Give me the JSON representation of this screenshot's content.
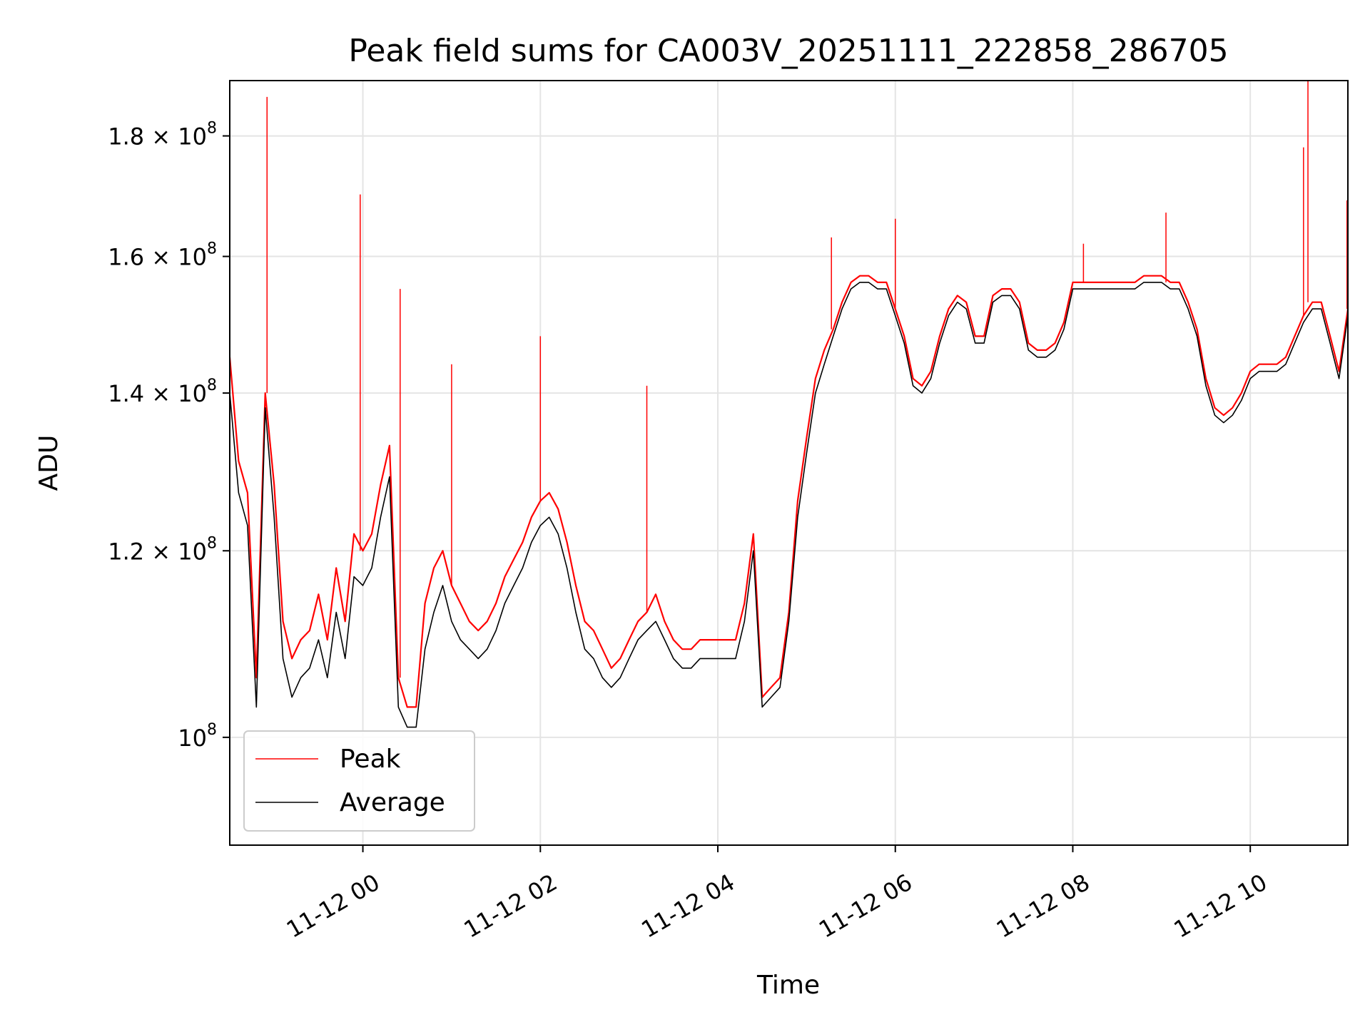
{
  "chart_data": {
    "type": "line",
    "title": "Peak field sums for CA003V_20251111_222858_286705",
    "xlabel": "Time",
    "ylabel": "ADU",
    "yscale": "log",
    "grid": true,
    "legend_position": "lower-left",
    "x_unit": "hours since 11-12 00:00",
    "xlim": [
      -1.5,
      11.1
    ],
    "ylim": [
      90000000,
      190000000
    ],
    "xticks": [
      {
        "value": 0,
        "label": "11-12 00"
      },
      {
        "value": 2,
        "label": "11-12 02"
      },
      {
        "value": 4,
        "label": "11-12 04"
      },
      {
        "value": 6,
        "label": "11-12 06"
      },
      {
        "value": 8,
        "label": "11-12 08"
      },
      {
        "value": 10,
        "label": "11-12 10"
      }
    ],
    "yticks": [
      {
        "value": 100000000,
        "mantissa": "",
        "base": "10",
        "exponent": "8"
      },
      {
        "value": 120000000,
        "mantissa": "1.2",
        "base": "10",
        "exponent": "8"
      },
      {
        "value": 140000000,
        "mantissa": "1.4",
        "base": "10",
        "exponent": "8"
      },
      {
        "value": 160000000,
        "mantissa": "1.6",
        "base": "10",
        "exponent": "8"
      },
      {
        "value": 180000000,
        "mantissa": "1.8",
        "base": "10",
        "exponent": "8"
      }
    ],
    "x": [
      -1.5,
      -1.4,
      -1.3,
      -1.2,
      -1.1,
      -1.0,
      -0.9,
      -0.8,
      -0.7,
      -0.6,
      -0.5,
      -0.4,
      -0.3,
      -0.2,
      -0.1,
      0.0,
      0.1,
      0.2,
      0.3,
      0.4,
      0.5,
      0.6,
      0.7,
      0.8,
      0.9,
      1.0,
      1.1,
      1.2,
      1.3,
      1.4,
      1.5,
      1.6,
      1.7,
      1.8,
      1.9,
      2.0,
      2.1,
      2.2,
      2.3,
      2.4,
      2.5,
      2.6,
      2.7,
      2.8,
      2.9,
      3.0,
      3.1,
      3.2,
      3.3,
      3.4,
      3.5,
      3.6,
      3.7,
      3.8,
      3.9,
      4.0,
      4.1,
      4.2,
      4.3,
      4.4,
      4.5,
      4.6,
      4.7,
      4.8,
      4.9,
      5.0,
      5.1,
      5.2,
      5.3,
      5.4,
      5.5,
      5.6,
      5.7,
      5.8,
      5.9,
      6.0,
      6.1,
      6.2,
      6.3,
      6.4,
      6.5,
      6.6,
      6.7,
      6.8,
      6.9,
      7.0,
      7.1,
      7.2,
      7.3,
      7.4,
      7.5,
      7.6,
      7.7,
      7.8,
      7.9,
      8.0,
      8.1,
      8.2,
      8.3,
      8.4,
      8.5,
      8.6,
      8.7,
      8.8,
      8.9,
      9.0,
      9.1,
      9.2,
      9.3,
      9.4,
      9.5,
      9.6,
      9.7,
      9.8,
      9.9,
      10.0,
      10.1,
      10.2,
      10.3,
      10.4,
      10.5,
      10.6,
      10.7,
      10.8,
      10.9,
      11.0,
      11.1
    ],
    "series": [
      {
        "name": "Peak",
        "color": "#ff0000",
        "values": [
          145000000.0,
          131000000.0,
          127000000.0,
          106000000.0,
          140000000.0,
          128000000.0,
          112000000.0,
          108000000.0,
          110000000.0,
          111000000.0,
          115000000.0,
          110000000.0,
          118000000.0,
          112000000.0,
          122000000.0,
          120000000.0,
          122000000.0,
          128000000.0,
          133000000.0,
          106000000.0,
          103000000.0,
          103000000.0,
          114000000.0,
          118000000.0,
          120000000.0,
          116000000.0,
          114000000.0,
          112000000.0,
          111000000.0,
          112000000.0,
          114000000.0,
          117000000.0,
          119000000.0,
          121000000.0,
          124000000.0,
          126000000.0,
          127000000.0,
          125000000.0,
          121000000.0,
          116000000.0,
          112000000.0,
          111000000.0,
          109000000.0,
          107000000.0,
          108000000.0,
          110000000.0,
          112000000.0,
          113000000.0,
          115000000.0,
          112000000.0,
          110000000.0,
          109000000.0,
          109000000.0,
          110000000.0,
          110000000.0,
          110000000.0,
          110000000.0,
          110000000.0,
          114000000.0,
          122000000.0,
          104000000.0,
          105000000.0,
          106000000.0,
          113000000.0,
          126000000.0,
          134000000.0,
          142000000.0,
          146000000.0,
          149000000.0,
          153000000.0,
          156000000.0,
          157000000.0,
          157000000.0,
          156000000.0,
          156000000.0,
          152000000.0,
          148000000.0,
          142000000.0,
          141000000.0,
          143000000.0,
          148000000.0,
          152000000.0,
          154000000.0,
          153000000.0,
          148000000.0,
          148000000.0,
          154000000.0,
          155000000.0,
          155000000.0,
          153000000.0,
          147000000.0,
          146000000.0,
          146000000.0,
          147000000.0,
          150000000.0,
          156000000.0,
          156000000.0,
          156000000.0,
          156000000.0,
          156000000.0,
          156000000.0,
          156000000.0,
          156000000.0,
          157000000.0,
          157000000.0,
          157000000.0,
          156000000.0,
          156000000.0,
          153000000.0,
          149000000.0,
          142000000.0,
          138000000.0,
          137000000.0,
          138000000.0,
          140000000.0,
          143000000.0,
          144000000.0,
          144000000.0,
          144000000.0,
          145000000.0,
          148000000.0,
          151000000.0,
          153000000.0,
          153000000.0,
          148000000.0,
          143000000.0,
          152000000.0
        ]
      },
      {
        "name": "Average",
        "color": "#000000",
        "values": [
          140000000.0,
          127000000.0,
          123000000.0,
          103000000.0,
          138000000.0,
          124000000.0,
          108000000.0,
          104000000.0,
          106000000.0,
          107000000.0,
          110000000.0,
          106000000.0,
          113000000.0,
          108000000.0,
          117000000.0,
          116000000.0,
          118000000.0,
          124000000.0,
          129000000.0,
          103000000.0,
          101000000.0,
          101000000.0,
          109000000.0,
          113000000.0,
          116000000.0,
          112000000.0,
          110000000.0,
          109000000.0,
          108000000.0,
          109000000.0,
          111000000.0,
          114000000.0,
          116000000.0,
          118000000.0,
          121000000.0,
          123000000.0,
          124000000.0,
          122000000.0,
          118000000.0,
          113000000.0,
          109000000.0,
          108000000.0,
          106000000.0,
          105000000.0,
          106000000.0,
          108000000.0,
          110000000.0,
          111000000.0,
          112000000.0,
          110000000.0,
          108000000.0,
          107000000.0,
          107000000.0,
          108000000.0,
          108000000.0,
          108000000.0,
          108000000.0,
          108000000.0,
          112000000.0,
          120000000.0,
          103000000.0,
          104000000.0,
          105000000.0,
          112000000.0,
          124000000.0,
          132000000.0,
          140000000.0,
          144000000.0,
          148000000.0,
          152000000.0,
          155000000.0,
          156000000.0,
          156000000.0,
          155000000.0,
          155000000.0,
          151000000.0,
          147000000.0,
          141000000.0,
          140000000.0,
          142000000.0,
          147000000.0,
          151000000.0,
          153000000.0,
          152000000.0,
          147000000.0,
          147000000.0,
          153000000.0,
          154000000.0,
          154000000.0,
          152000000.0,
          146000000.0,
          145000000.0,
          145000000.0,
          146000000.0,
          149000000.0,
          155000000.0,
          155000000.0,
          155000000.0,
          155000000.0,
          155000000.0,
          155000000.0,
          155000000.0,
          155000000.0,
          156000000.0,
          156000000.0,
          156000000.0,
          155000000.0,
          155000000.0,
          152000000.0,
          148000000.0,
          141000000.0,
          137000000.0,
          136000000.0,
          137000000.0,
          139000000.0,
          142000000.0,
          143000000.0,
          143000000.0,
          143000000.0,
          144000000.0,
          147000000.0,
          150000000.0,
          152000000.0,
          152000000.0,
          147000000.0,
          142000000.0,
          151000000.0
        ]
      }
    ],
    "spikes": [
      {
        "x": -1.08,
        "y": 187000000.0
      },
      {
        "x": -0.03,
        "y": 170000000.0
      },
      {
        "x": 0.42,
        "y": 155000000.0
      },
      {
        "x": 1.0,
        "y": 144000000.0
      },
      {
        "x": 2.0,
        "y": 148000000.0
      },
      {
        "x": 3.2,
        "y": 141000000.0
      },
      {
        "x": 5.28,
        "y": 163000000.0
      },
      {
        "x": 6.0,
        "y": 166000000.0
      },
      {
        "x": 8.12,
        "y": 162000000.0
      },
      {
        "x": 9.05,
        "y": 167000000.0
      },
      {
        "x": 10.65,
        "y": 190000000.0
      },
      {
        "x": 10.6,
        "y": 178000000.0
      },
      {
        "x": 11.09,
        "y": 169000000.0
      }
    ]
  }
}
